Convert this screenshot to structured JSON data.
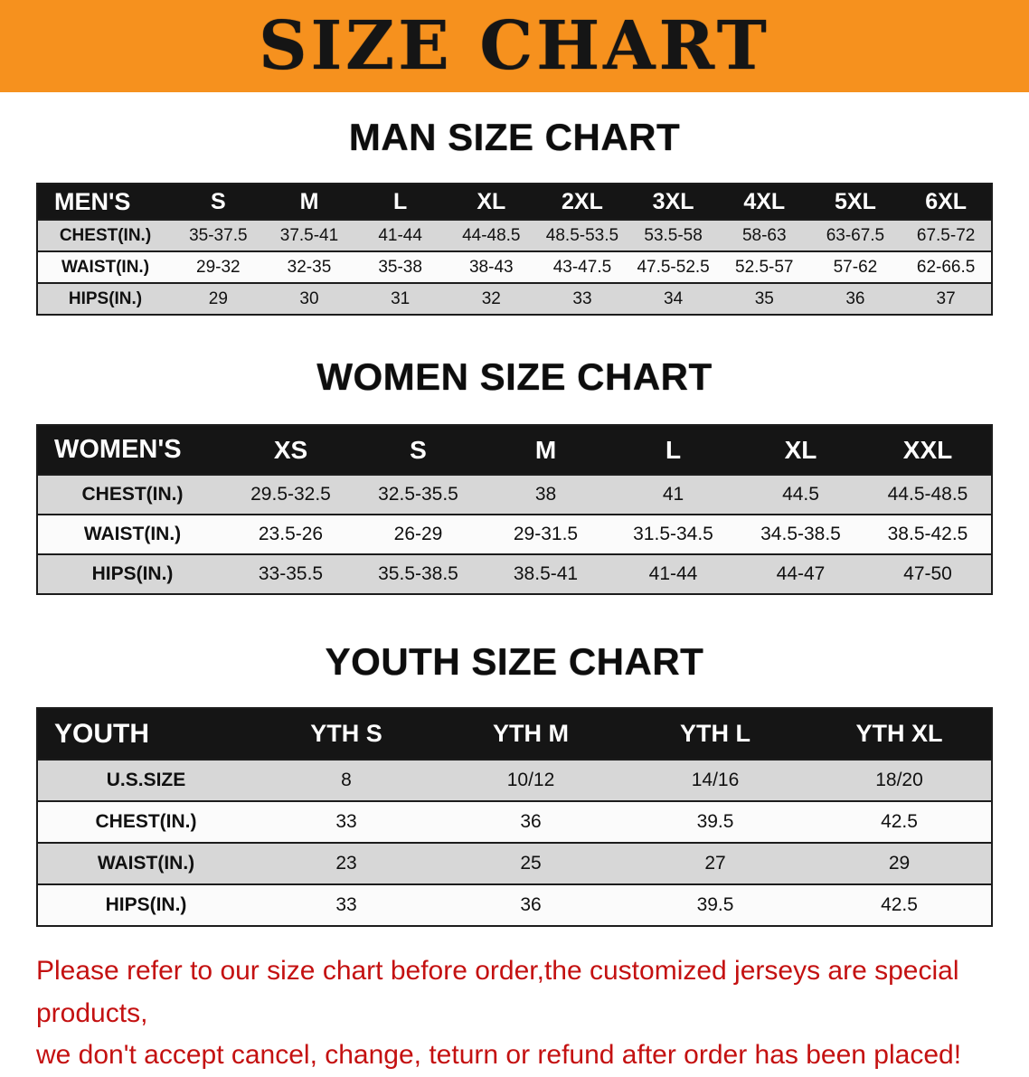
{
  "banner": {
    "title": "SIZE CHART",
    "bg_color": "#F6911E",
    "title_color": "#151515"
  },
  "sections": [
    {
      "heading": "MAN SIZE CHART",
      "table": {
        "header": [
          "MEN'S",
          "S",
          "M",
          "L",
          "XL",
          "2XL",
          "3XL",
          "4XL",
          "5XL",
          "6XL"
        ],
        "rows": [
          {
            "label": "CHEST(IN.)",
            "values": [
              "35-37.5",
              "37.5-41",
              "41-44",
              "44-48.5",
              "48.5-53.5",
              "53.5-58",
              "58-63",
              "63-67.5",
              "67.5-72"
            ]
          },
          {
            "label": "WAIST(IN.)",
            "values": [
              "29-32",
              "32-35",
              "35-38",
              "38-43",
              "43-47.5",
              "47.5-52.5",
              "52.5-57",
              "57-62",
              "62-66.5"
            ]
          },
          {
            "label": "HIPS(IN.)",
            "values": [
              "29",
              "30",
              "31",
              "32",
              "33",
              "34",
              "35",
              "36",
              "37"
            ]
          }
        ]
      }
    },
    {
      "heading": "WOMEN SIZE CHART",
      "table": {
        "header": [
          "WOMEN'S",
          "XS",
          "S",
          "M",
          "L",
          "XL",
          "XXL"
        ],
        "rows": [
          {
            "label": "CHEST(IN.)",
            "values": [
              "29.5-32.5",
              "32.5-35.5",
              "38",
              "41",
              "44.5",
              "44.5-48.5"
            ]
          },
          {
            "label": "WAIST(IN.)",
            "values": [
              "23.5-26",
              "26-29",
              "29-31.5",
              "31.5-34.5",
              "34.5-38.5",
              "38.5-42.5"
            ]
          },
          {
            "label": "HIPS(IN.)",
            "values": [
              "33-35.5",
              "35.5-38.5",
              "38.5-41",
              "41-44",
              "44-47",
              "47-50"
            ]
          }
        ]
      }
    },
    {
      "heading": "YOUTH SIZE CHART",
      "table": {
        "header": [
          "YOUTH",
          "YTH S",
          "YTH M",
          "YTH L",
          "YTH XL"
        ],
        "rows": [
          {
            "label": "U.S.SIZE",
            "values": [
              "8",
              "10/12",
              "14/16",
              "18/20"
            ]
          },
          {
            "label": "CHEST(IN.)",
            "values": [
              "33",
              "36",
              "39.5",
              "42.5"
            ]
          },
          {
            "label": "WAIST(IN.)",
            "values": [
              "23",
              "25",
              "27",
              "29"
            ]
          },
          {
            "label": "HIPS(IN.)",
            "values": [
              "33",
              "36",
              "39.5",
              "42.5"
            ]
          }
        ]
      }
    }
  ],
  "footer": {
    "line1": "Please refer to our size chart before order,the customized jerseys are special products,",
    "line2": "we don't accept cancel, change, teturn or refund after order has been placed!",
    "text_color": "#C41111"
  }
}
